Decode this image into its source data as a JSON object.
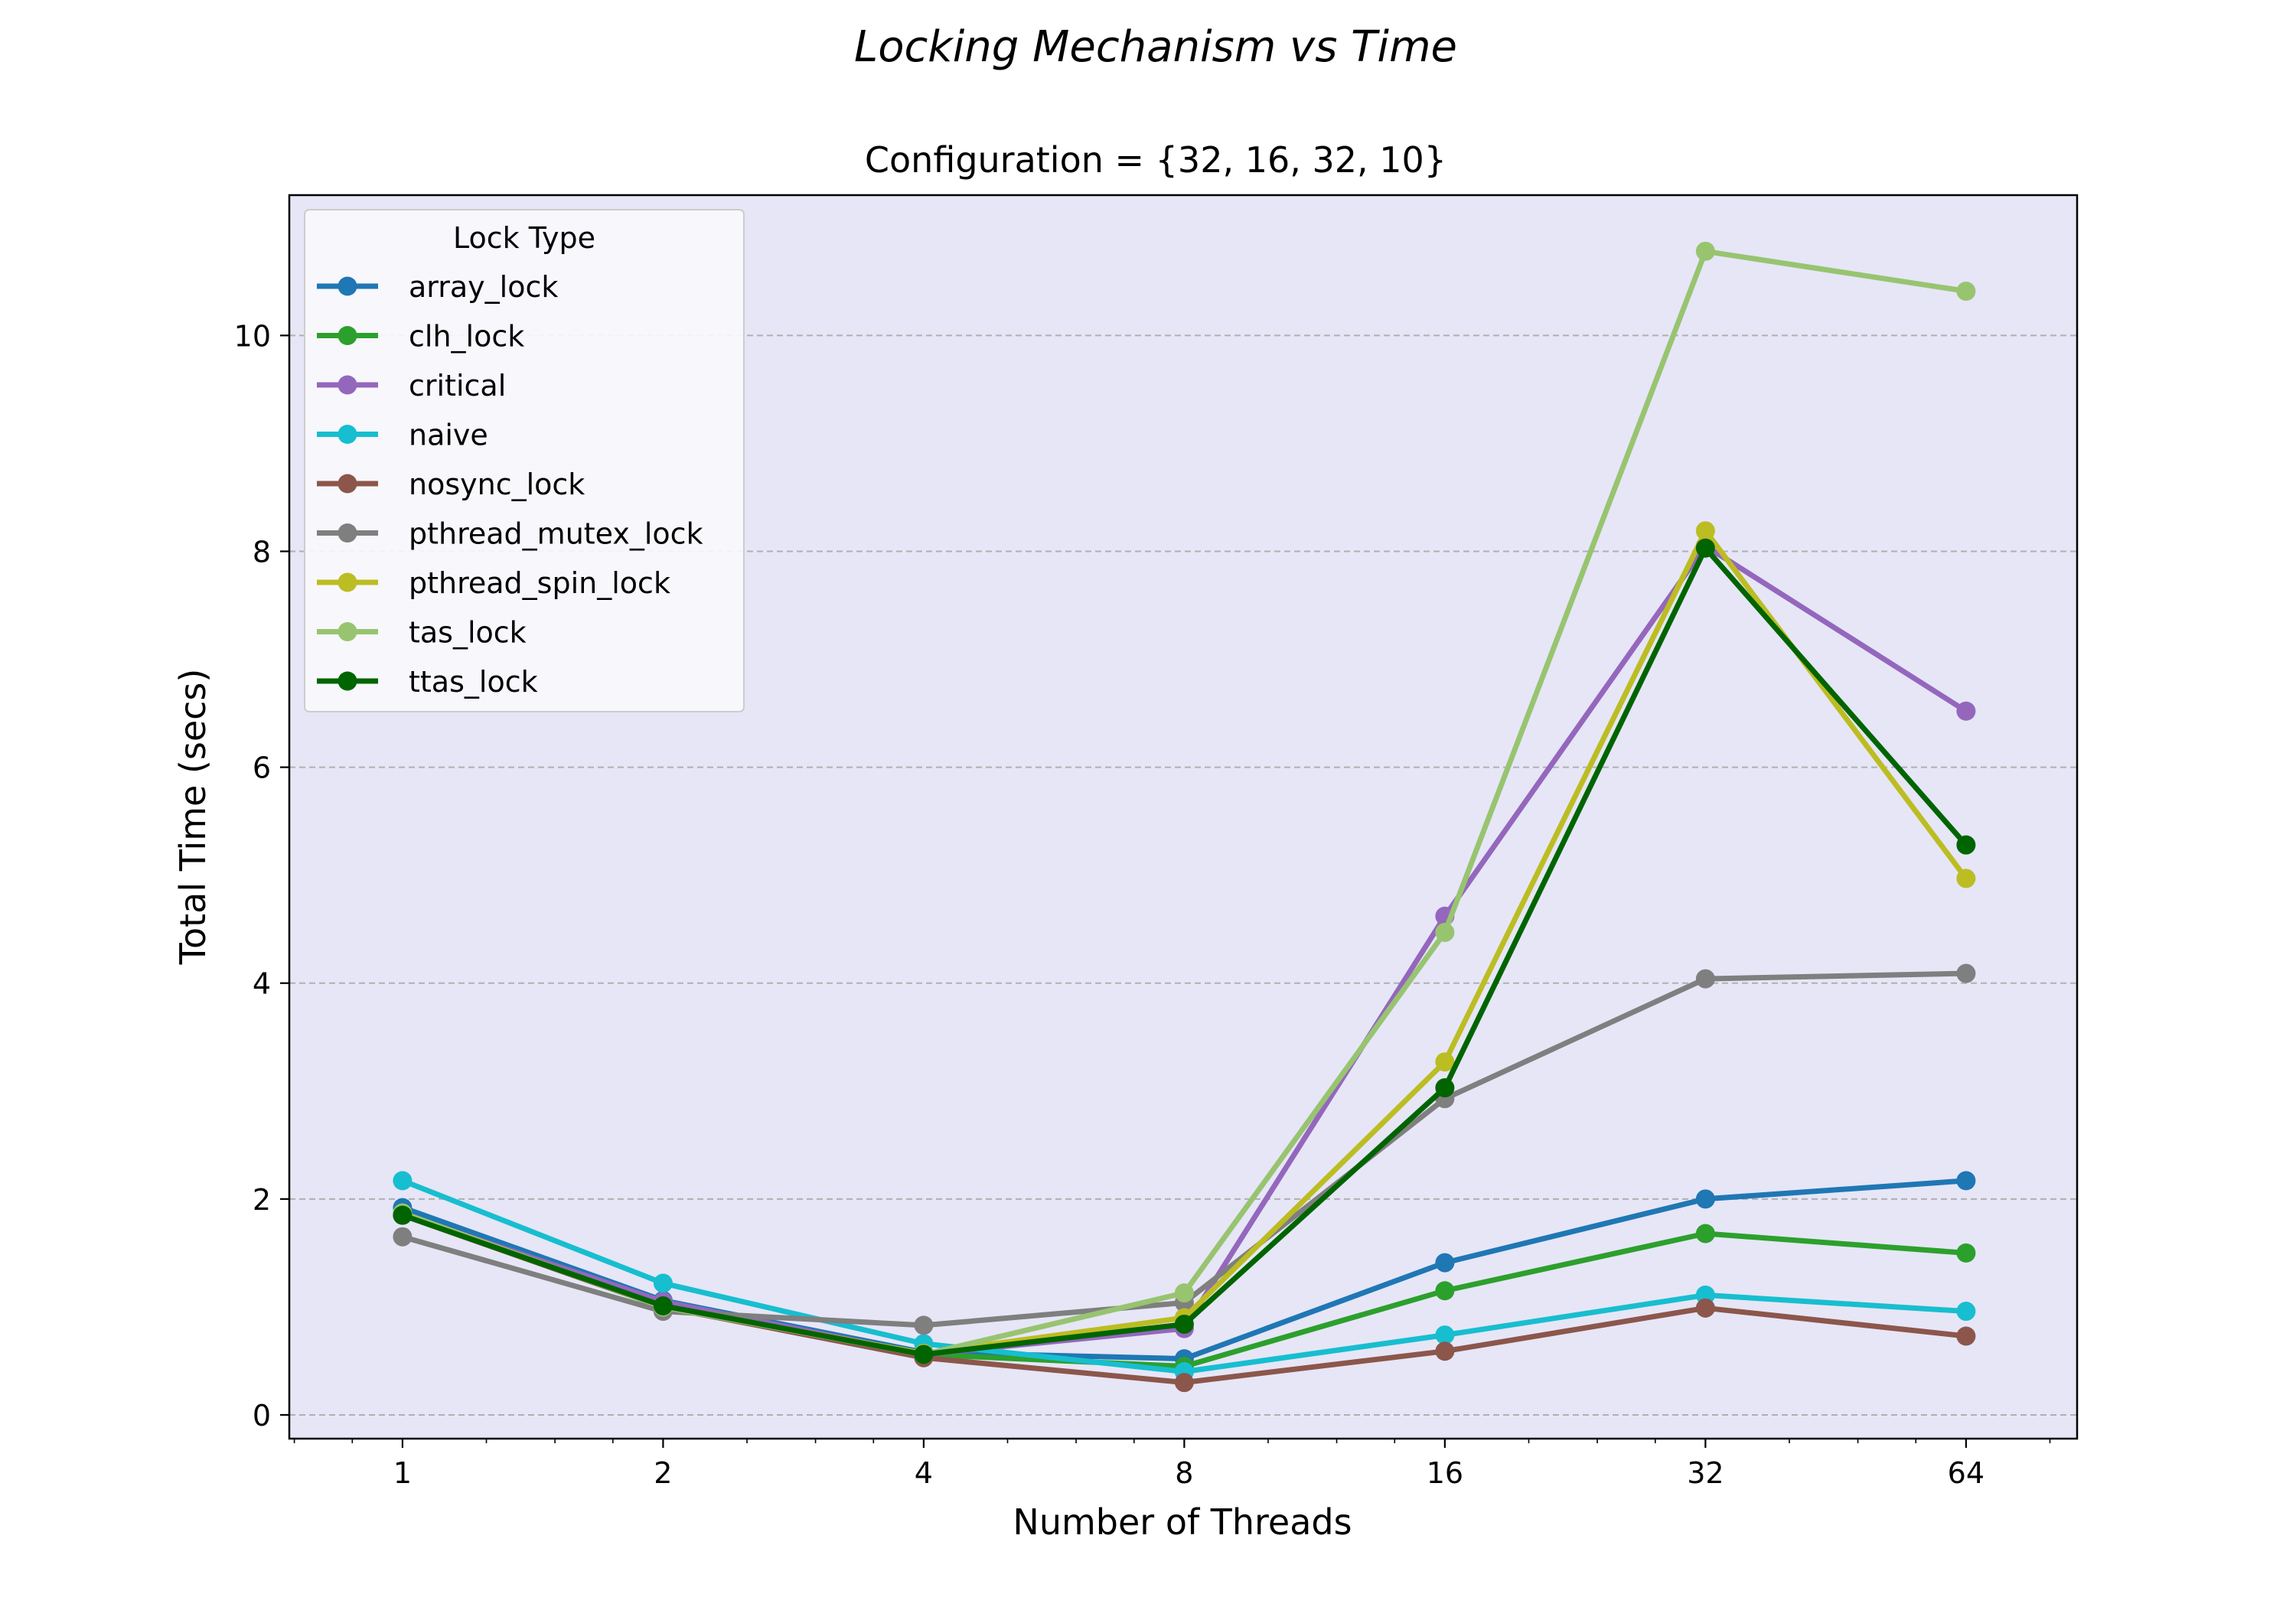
{
  "chart_data": {
    "type": "line",
    "suptitle": "Locking Mechanism vs Time",
    "title": "Configuration = {32, 16, 32, 10}",
    "xlabel": "Number of Threads",
    "ylabel": "Total Time (secs)",
    "x_scale": "log2",
    "x": [
      1,
      2,
      4,
      8,
      16,
      32,
      64
    ],
    "x_tick_labels": [
      "1",
      "2",
      "4",
      "8",
      "16",
      "32",
      "64"
    ],
    "y_ticks": [
      0,
      2,
      4,
      6,
      8,
      10
    ],
    "y_tick_labels": [
      "0",
      "2",
      "4",
      "6",
      "8",
      "10"
    ],
    "ylim": [
      -0.22,
      11.3
    ],
    "xlim": [
      0.74,
      86
    ],
    "grid": "y-dashed",
    "background_color": "#e6e6f7",
    "legend": {
      "title": "Lock Type",
      "placement": "top-left"
    },
    "series": [
      {
        "name": "array_lock",
        "color": "#1f77b4",
        "values": [
          1.92,
          1.06,
          0.58,
          0.52,
          1.41,
          2.0,
          2.17
        ]
      },
      {
        "name": "clh_lock",
        "color": "#2ca02c",
        "values": [
          1.85,
          1.0,
          0.56,
          0.45,
          1.15,
          1.68,
          1.5
        ]
      },
      {
        "name": "critical",
        "color": "#9467bd",
        "values": [
          1.86,
          1.05,
          0.56,
          0.8,
          4.62,
          8.05,
          6.52
        ]
      },
      {
        "name": "naive",
        "color": "#17becf",
        "values": [
          2.17,
          1.22,
          0.66,
          0.4,
          0.74,
          1.11,
          0.96
        ]
      },
      {
        "name": "nosync_lock",
        "color": "#8c564b",
        "values": [
          1.85,
          1.0,
          0.53,
          0.3,
          0.59,
          0.99,
          0.73
        ]
      },
      {
        "name": "pthread_mutex_lock",
        "color": "#7f7f7f",
        "values": [
          1.65,
          0.96,
          0.83,
          1.04,
          2.93,
          4.04,
          4.09
        ]
      },
      {
        "name": "pthread_spin_lock",
        "color": "#bcbd22",
        "values": [
          1.87,
          1.0,
          0.57,
          0.9,
          3.27,
          8.19,
          4.97
        ]
      },
      {
        "name": "tas_lock",
        "color": "#98c470",
        "values": [
          1.87,
          1.0,
          0.56,
          1.13,
          4.47,
          10.78,
          10.41
        ]
      },
      {
        "name": "ttas_lock",
        "color": "#006400",
        "values": [
          1.85,
          1.01,
          0.56,
          0.84,
          3.03,
          8.03,
          5.28
        ]
      }
    ]
  }
}
